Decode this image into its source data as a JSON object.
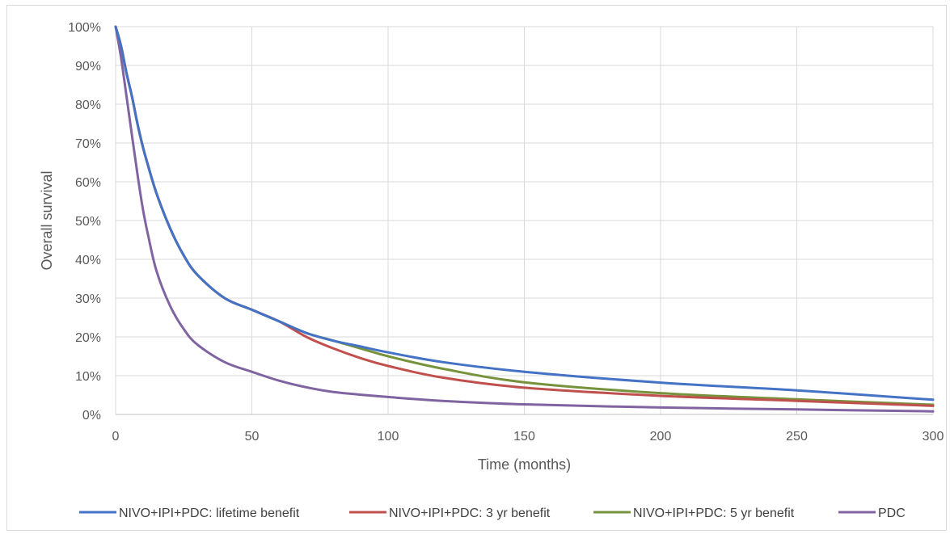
{
  "chart_data": {
    "type": "line",
    "xlabel": "Time (months)",
    "ylabel": "Overall survival",
    "xlim": [
      0,
      300
    ],
    "ylim": [
      0,
      100
    ],
    "x_ticks": [
      "0",
      "50",
      "100",
      "150",
      "200",
      "250",
      "300"
    ],
    "y_ticks": [
      "0%",
      "10%",
      "20%",
      "30%",
      "40%",
      "50%",
      "60%",
      "70%",
      "80%",
      "90%",
      "100%"
    ],
    "grid": true,
    "legend_position": "bottom",
    "series": [
      {
        "name": "NIVO+IPI+PDC: lifetime benefit",
        "color": "#4472C4",
        "x": [
          0,
          2,
          4,
          6,
          8,
          10,
          12,
          15,
          20,
          25,
          30,
          40,
          50,
          60,
          70,
          80,
          90,
          100,
          120,
          150,
          200,
          250,
          300
        ],
        "y": [
          100,
          95,
          88,
          82,
          75,
          69,
          64,
          57,
          48,
          41,
          36,
          30,
          27,
          24,
          21,
          19,
          17.5,
          16,
          13.5,
          11,
          8.2,
          6.2,
          3.8
        ]
      },
      {
        "name": "NIVO+IPI+PDC: 3 yr benefit",
        "color": "#C0504D",
        "x": [
          0,
          2,
          4,
          6,
          8,
          10,
          12,
          15,
          20,
          25,
          30,
          40,
          50,
          60,
          70,
          80,
          90,
          100,
          120,
          150,
          200,
          250,
          300
        ],
        "y": [
          100,
          95,
          88,
          82,
          75,
          69,
          64,
          57,
          48,
          41,
          36,
          30,
          27,
          24,
          20,
          17,
          14.5,
          12.5,
          9.5,
          6.9,
          4.8,
          3.5,
          2.2
        ]
      },
      {
        "name": "NIVO+IPI+PDC: 5 yr benefit",
        "color": "#76933C",
        "x": [
          0,
          2,
          4,
          6,
          8,
          10,
          12,
          15,
          20,
          25,
          30,
          40,
          50,
          60,
          70,
          80,
          90,
          100,
          120,
          150,
          200,
          250,
          300
        ],
        "y": [
          100,
          95,
          88,
          82,
          75,
          69,
          64,
          57,
          48,
          41,
          36,
          30,
          27,
          24,
          21,
          19,
          17,
          15,
          11.8,
          8.3,
          5.5,
          3.9,
          2.5
        ]
      },
      {
        "name": "PDC",
        "color": "#8064A2",
        "x": [
          0,
          2,
          4,
          6,
          8,
          10,
          12,
          15,
          20,
          25,
          30,
          40,
          50,
          60,
          70,
          80,
          100,
          120,
          150,
          200,
          250,
          300
        ],
        "y": [
          100,
          92,
          82,
          72,
          62,
          53,
          46,
          37,
          28,
          22,
          18,
          13.5,
          11,
          8.7,
          7,
          5.8,
          4.5,
          3.5,
          2.6,
          1.8,
          1.3,
          0.8
        ]
      }
    ]
  }
}
